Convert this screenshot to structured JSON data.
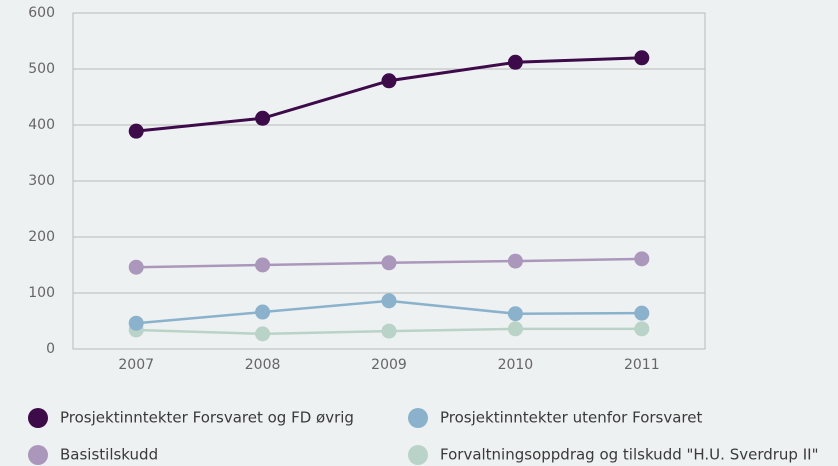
{
  "chart_data": {
    "type": "line",
    "categories": [
      "2007",
      "2008",
      "2009",
      "2010",
      "2011"
    ],
    "series": [
      {
        "name": "Prosjektinntekter Forsvaret og FD øvrig",
        "color": "#3d0a4a",
        "values": [
          389,
          412,
          479,
          512,
          520
        ]
      },
      {
        "name": "Prosjektinntekter utenfor Forsvaret",
        "color": "#8bb2cc",
        "values": [
          46,
          66,
          86,
          63,
          64
        ]
      },
      {
        "name": "Basistilskudd",
        "color": "#ab97bb",
        "values": [
          146,
          150,
          154,
          157,
          161
        ]
      },
      {
        "name": "Forvaltningsoppdrag og tilskudd \"H.U. Sverdrup II\"",
        "color": "#bad3c8",
        "values": [
          34,
          27,
          32,
          36,
          36
        ]
      }
    ],
    "ylim": [
      0,
      600
    ],
    "yticks": [
      0,
      100,
      200,
      300,
      400,
      500,
      600
    ],
    "grid": true
  }
}
